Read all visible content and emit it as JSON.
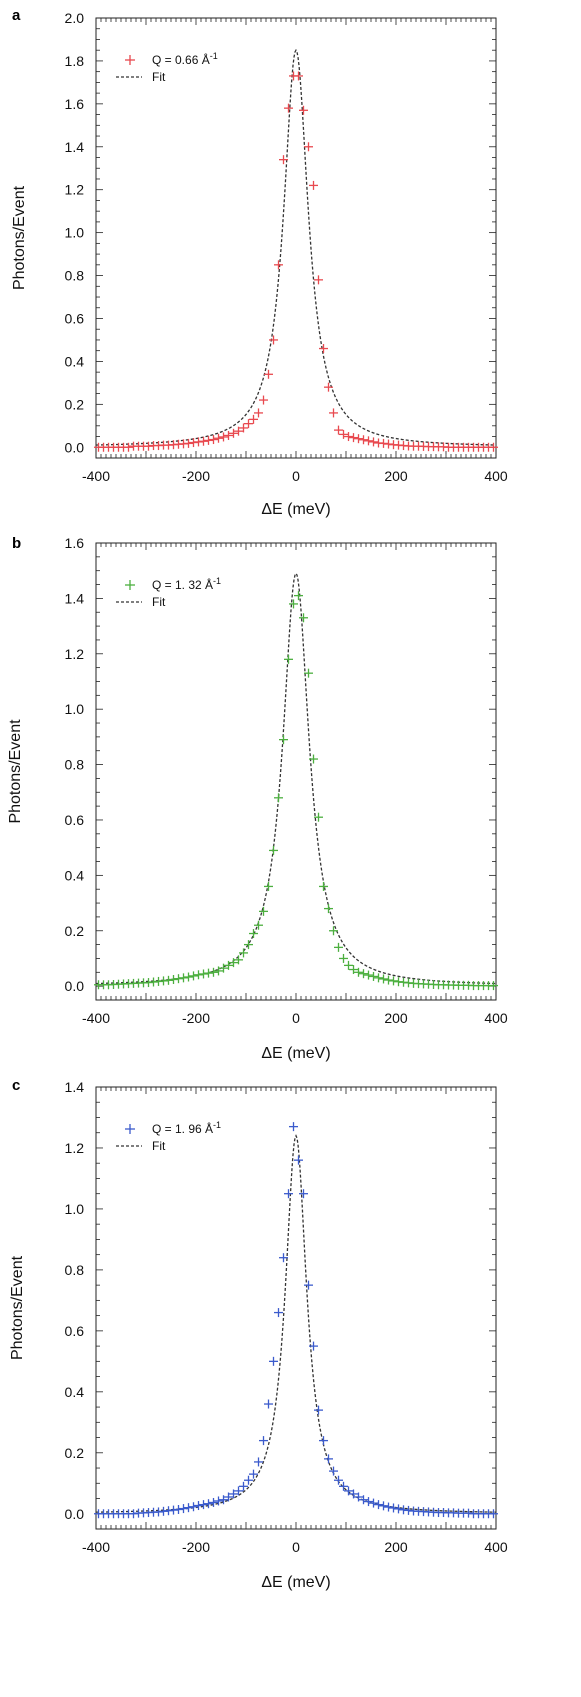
{
  "chart_data": [
    {
      "type": "scatter",
      "panel_label": "a",
      "xlabel": "ΔE (meV)",
      "ylabel": "Photons/Event",
      "xlim": [
        -400,
        400
      ],
      "ylim": [
        -0.05,
        2.0
      ],
      "xticks": [
        "-400",
        "-200",
        "0",
        "200",
        "400"
      ],
      "xtick_values": [
        -400,
        -200,
        0,
        200,
        400
      ],
      "yticks": [
        "0.0",
        "0.2",
        "0.4",
        "0.6",
        "0.8",
        "1.0",
        "1.2",
        "1.4",
        "1.6",
        "1.8",
        "2.0"
      ],
      "ytick_values": [
        0,
        0.2,
        0.4,
        0.6,
        0.8,
        1.0,
        1.2,
        1.4,
        1.6,
        1.8,
        2.0
      ],
      "grid": false,
      "legend_position": "top-left",
      "series": [
        {
          "name": "Q = 0.66 Å⁻¹",
          "legend_main": "Q = 0.66 Å",
          "legend_sup": "-1",
          "style": "marker-plus",
          "color": "#e8494f",
          "x": [
            -395,
            -385,
            -375,
            -365,
            -355,
            -345,
            -335,
            -325,
            -315,
            -305,
            -295,
            -285,
            -275,
            -265,
            -255,
            -245,
            -235,
            -225,
            -215,
            -205,
            -195,
            -185,
            -175,
            -165,
            -155,
            -145,
            -135,
            -125,
            -115,
            -105,
            -95,
            -85,
            -75,
            -65,
            -55,
            -45,
            -35,
            -25,
            -15,
            -5,
            5,
            15,
            25,
            35,
            45,
            55,
            65,
            75,
            85,
            95,
            105,
            115,
            125,
            135,
            145,
            155,
            165,
            175,
            185,
            195,
            205,
            215,
            225,
            235,
            245,
            255,
            265,
            275,
            285,
            295,
            305,
            315,
            325,
            335,
            345,
            355,
            365,
            375,
            385,
            395
          ],
          "y": [
            0.0,
            0.0,
            0.0,
            0.0,
            0.0,
            0.0,
            0.0,
            0.005,
            0.005,
            0.005,
            0.005,
            0.008,
            0.008,
            0.01,
            0.01,
            0.012,
            0.014,
            0.016,
            0.018,
            0.022,
            0.025,
            0.028,
            0.032,
            0.036,
            0.042,
            0.048,
            0.055,
            0.065,
            0.075,
            0.09,
            0.11,
            0.13,
            0.16,
            0.22,
            0.34,
            0.5,
            0.85,
            1.34,
            1.58,
            1.73,
            1.73,
            1.57,
            1.4,
            1.22,
            0.78,
            0.46,
            0.28,
            0.16,
            0.08,
            0.06,
            0.05,
            0.045,
            0.04,
            0.035,
            0.03,
            0.025,
            0.02,
            0.018,
            0.015,
            0.012,
            0.01,
            0.008,
            0.006,
            0.005,
            0.005,
            0.004,
            0.003,
            0.003,
            0.002,
            0.002,
            0.0,
            0.0,
            0.0,
            0.0,
            0.0,
            0.0,
            0.0,
            0.0,
            0.0,
            0.0
          ]
        },
        {
          "name": "Fit",
          "legend_main": "Fit",
          "legend_sup": "",
          "style": "line-dashed",
          "color": "#333333",
          "center": 0,
          "hwhm": 30,
          "amplitude": 1.85
        }
      ]
    },
    {
      "type": "scatter",
      "panel_label": "b",
      "xlabel": "ΔE (meV)",
      "ylabel": "Photons/Event",
      "xlim": [
        -400,
        400
      ],
      "ylim": [
        -0.05,
        1.6
      ],
      "xticks": [
        "-400",
        "-200",
        "0",
        "200",
        "400"
      ],
      "xtick_values": [
        -400,
        -200,
        0,
        200,
        400
      ],
      "yticks": [
        "0.0",
        "0.2",
        "0.4",
        "0.6",
        "0.8",
        "1.0",
        "1.2",
        "1.4",
        "1.6"
      ],
      "ytick_values": [
        0,
        0.2,
        0.4,
        0.6,
        0.8,
        1.0,
        1.2,
        1.4,
        1.6
      ],
      "grid": false,
      "legend_position": "top-left",
      "series": [
        {
          "name": "Q = 1. 32 Å⁻¹",
          "legend_main": "Q = 1. 32 Å",
          "legend_sup": "-1",
          "style": "marker-plus",
          "color": "#4caf3f",
          "x": [
            -395,
            -385,
            -375,
            -365,
            -355,
            -345,
            -335,
            -325,
            -315,
            -305,
            -295,
            -285,
            -275,
            -265,
            -255,
            -245,
            -235,
            -225,
            -215,
            -205,
            -195,
            -185,
            -175,
            -165,
            -155,
            -145,
            -135,
            -125,
            -115,
            -105,
            -95,
            -85,
            -75,
            -65,
            -55,
            -45,
            -35,
            -25,
            -15,
            -5,
            5,
            15,
            25,
            35,
            45,
            55,
            65,
            75,
            85,
            95,
            105,
            115,
            125,
            135,
            145,
            155,
            165,
            175,
            185,
            195,
            205,
            215,
            225,
            235,
            245,
            255,
            265,
            275,
            285,
            295,
            305,
            315,
            325,
            335,
            345,
            355,
            365,
            375,
            385,
            395
          ],
          "y": [
            0.005,
            0.005,
            0.005,
            0.006,
            0.007,
            0.008,
            0.009,
            0.01,
            0.011,
            0.012,
            0.013,
            0.015,
            0.017,
            0.019,
            0.021,
            0.024,
            0.027,
            0.03,
            0.033,
            0.037,
            0.041,
            0.044,
            0.047,
            0.05,
            0.055,
            0.065,
            0.075,
            0.085,
            0.095,
            0.12,
            0.15,
            0.19,
            0.22,
            0.27,
            0.36,
            0.49,
            0.68,
            0.89,
            1.18,
            1.38,
            1.41,
            1.33,
            1.13,
            0.82,
            0.61,
            0.36,
            0.28,
            0.2,
            0.14,
            0.1,
            0.075,
            0.06,
            0.05,
            0.045,
            0.04,
            0.035,
            0.03,
            0.026,
            0.022,
            0.019,
            0.016,
            0.014,
            0.012,
            0.01,
            0.009,
            0.008,
            0.007,
            0.006,
            0.005,
            0.005,
            0.004,
            0.004,
            0.003,
            0.003,
            0.003,
            0.002,
            0.002,
            0.002,
            0.002,
            0.002
          ]
        },
        {
          "name": "Fit",
          "legend_main": "Fit",
          "legend_sup": "",
          "style": "line-dashed",
          "color": "#333333",
          "center": 0,
          "hwhm": 32,
          "amplitude": 1.49
        }
      ]
    },
    {
      "type": "scatter",
      "panel_label": "c",
      "xlabel": "ΔE (meV)",
      "ylabel": "Photons/Event",
      "xlim": [
        -400,
        400
      ],
      "ylim": [
        -0.05,
        1.4
      ],
      "xticks": [
        "-400",
        "-200",
        "0",
        "200",
        "400"
      ],
      "xtick_values": [
        -400,
        -200,
        0,
        200,
        400
      ],
      "yticks": [
        "0.0",
        "0.2",
        "0.4",
        "0.6",
        "0.8",
        "1.0",
        "1.2",
        "1.4"
      ],
      "ytick_values": [
        0,
        0.2,
        0.4,
        0.6,
        0.8,
        1.0,
        1.2,
        1.4
      ],
      "grid": false,
      "legend_position": "top-left",
      "series": [
        {
          "name": "Q = 1. 96 Å⁻¹",
          "legend_main": "Q = 1. 96 Å",
          "legend_sup": "-1",
          "style": "marker-plus",
          "color": "#3b5bcc",
          "x": [
            -395,
            -385,
            -375,
            -365,
            -355,
            -345,
            -335,
            -325,
            -315,
            -305,
            -295,
            -285,
            -275,
            -265,
            -255,
            -245,
            -235,
            -225,
            -215,
            -205,
            -195,
            -185,
            -175,
            -165,
            -155,
            -145,
            -135,
            -125,
            -115,
            -105,
            -95,
            -85,
            -75,
            -65,
            -55,
            -45,
            -35,
            -25,
            -15,
            -5,
            5,
            15,
            25,
            35,
            45,
            55,
            65,
            75,
            85,
            95,
            105,
            115,
            125,
            135,
            145,
            155,
            165,
            175,
            185,
            195,
            205,
            215,
            225,
            235,
            245,
            255,
            265,
            275,
            285,
            295,
            305,
            315,
            325,
            335,
            345,
            355,
            365,
            375,
            385,
            395
          ],
          "y": [
            0.0,
            0.0,
            0.0,
            0.0,
            0.0,
            0.0,
            0.0,
            0.0,
            0.002,
            0.003,
            0.004,
            0.005,
            0.006,
            0.008,
            0.01,
            0.012,
            0.014,
            0.017,
            0.02,
            0.023,
            0.027,
            0.03,
            0.033,
            0.037,
            0.042,
            0.046,
            0.055,
            0.065,
            0.075,
            0.09,
            0.11,
            0.13,
            0.17,
            0.24,
            0.36,
            0.5,
            0.66,
            0.84,
            1.05,
            1.27,
            1.16,
            1.05,
            0.75,
            0.55,
            0.34,
            0.24,
            0.18,
            0.14,
            0.11,
            0.09,
            0.075,
            0.065,
            0.055,
            0.046,
            0.04,
            0.035,
            0.03,
            0.026,
            0.022,
            0.019,
            0.016,
            0.013,
            0.011,
            0.009,
            0.008,
            0.007,
            0.006,
            0.005,
            0.004,
            0.004,
            0.003,
            0.003,
            0.002,
            0.002,
            0.002,
            0.0,
            0.0,
            0.0,
            0.0,
            0.0
          ]
        },
        {
          "name": "Fit",
          "legend_main": "Fit",
          "legend_sup": "",
          "style": "line-dashed",
          "color": "#333333",
          "center": 0,
          "hwhm": 26,
          "amplitude": 1.24
        }
      ]
    }
  ]
}
